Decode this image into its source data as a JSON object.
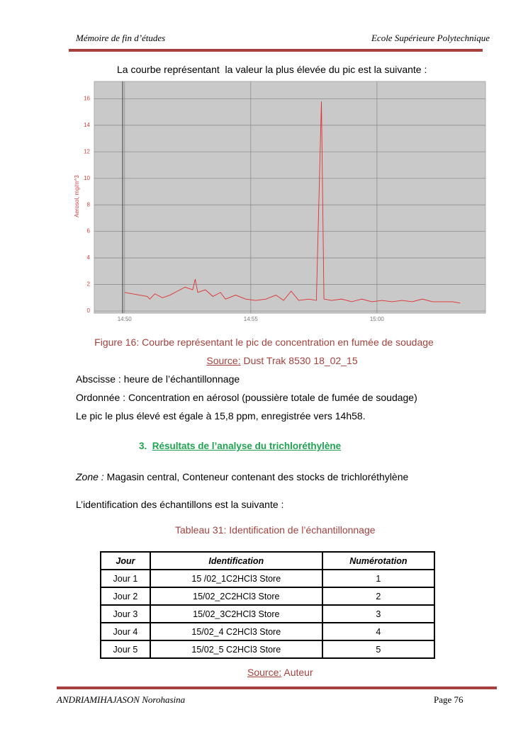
{
  "header": {
    "left": "Mémoire de fin d’études",
    "right": "Ecole Supérieure Polytechnique"
  },
  "intro": "La courbe représentant  la valeur la plus élevée du pic est la suivante :",
  "chart_data": {
    "type": "line",
    "y_label": "Aerosol, mg/m^3",
    "color": "#e03030",
    "grid": true,
    "x": [
      890.0,
      890.3,
      890.6,
      890.9,
      891.0,
      891.2,
      891.5,
      891.8,
      892.1,
      892.4,
      892.7,
      892.8,
      892.9,
      893.2,
      893.5,
      893.8,
      894.0,
      894.4,
      894.8,
      895.2,
      895.6,
      896.0,
      896.3,
      896.6,
      896.9,
      897.3,
      897.6,
      897.8,
      897.9,
      898.2,
      898.6,
      899.0,
      899.4,
      899.8,
      900.2,
      900.6,
      901.0,
      901.4,
      901.8,
      902.2,
      902.6,
      903.0,
      903.3
    ],
    "values": [
      1.4,
      1.3,
      1.2,
      1.1,
      0.9,
      1.3,
      1.0,
      1.2,
      1.5,
      1.8,
      1.6,
      2.4,
      1.4,
      1.6,
      1.1,
      1.4,
      0.9,
      1.2,
      0.9,
      0.8,
      0.9,
      1.2,
      0.8,
      1.5,
      0.8,
      0.9,
      0.8,
      15.8,
      0.9,
      0.8,
      0.9,
      0.7,
      0.9,
      0.7,
      0.8,
      0.7,
      0.8,
      0.7,
      0.9,
      0.7,
      0.7,
      0.7,
      0.6
    ],
    "xlim": [
      888.8,
      904.3
    ],
    "xticks": [
      {
        "value": 890,
        "label": "14:50"
      },
      {
        "value": 895,
        "label": "14:55"
      },
      {
        "value": 900,
        "label": "15:00"
      }
    ],
    "ylim": [
      0,
      17.3
    ],
    "yticks": [
      0,
      2,
      4,
      6,
      8,
      10,
      12,
      14,
      16
    ]
  },
  "figure_caption": "Figure 16: Courbe représentant le pic de concentration en fumée de soudage",
  "figure_source": {
    "label": "Source:",
    "text": "Dust Trak 8530 18_02_15"
  },
  "paragraphs": [
    "Abscisse : heure de l’échantillonnage",
    "Ordonnée : Concentration en aérosol (poussière totale de fumée de soudage)",
    "Le pic le plus élevé est égale à 15,8 ppm, enregistrée vers 14h58."
  ],
  "section": {
    "number": "3.",
    "title": "Résultats de l’analyse du trichloréthylène"
  },
  "zone": {
    "label": "Zone :",
    "text": "Magasin central, Conteneur contenant des stocks de trichloréthylène"
  },
  "identification_intro": "L’identification des échantillons est la suivante :",
  "table_caption": "Tableau 31: Identification de l’échantillonnage",
  "table": {
    "header": [
      "Jour",
      "Identification",
      "Numérotation"
    ],
    "rows": [
      [
        "Jour 1",
        "15 /02_1C2HCl3 Store",
        "1"
      ],
      [
        "Jour 2",
        "15/02_2C2HCl3 Store",
        "2"
      ],
      [
        "Jour 3",
        "15/02_3C2HCl3 Store",
        "3"
      ],
      [
        "Jour 4",
        "15/02_4 C2HCl3 Store",
        "4"
      ],
      [
        "Jour 5",
        "15/02_5 C2HCl3 Store",
        "5"
      ]
    ]
  },
  "table_source": {
    "label": "Source:",
    "text": "Auteur"
  },
  "footer": {
    "left": "ANDRIAMIHAJASON Norohasina",
    "right": "Page 76"
  }
}
